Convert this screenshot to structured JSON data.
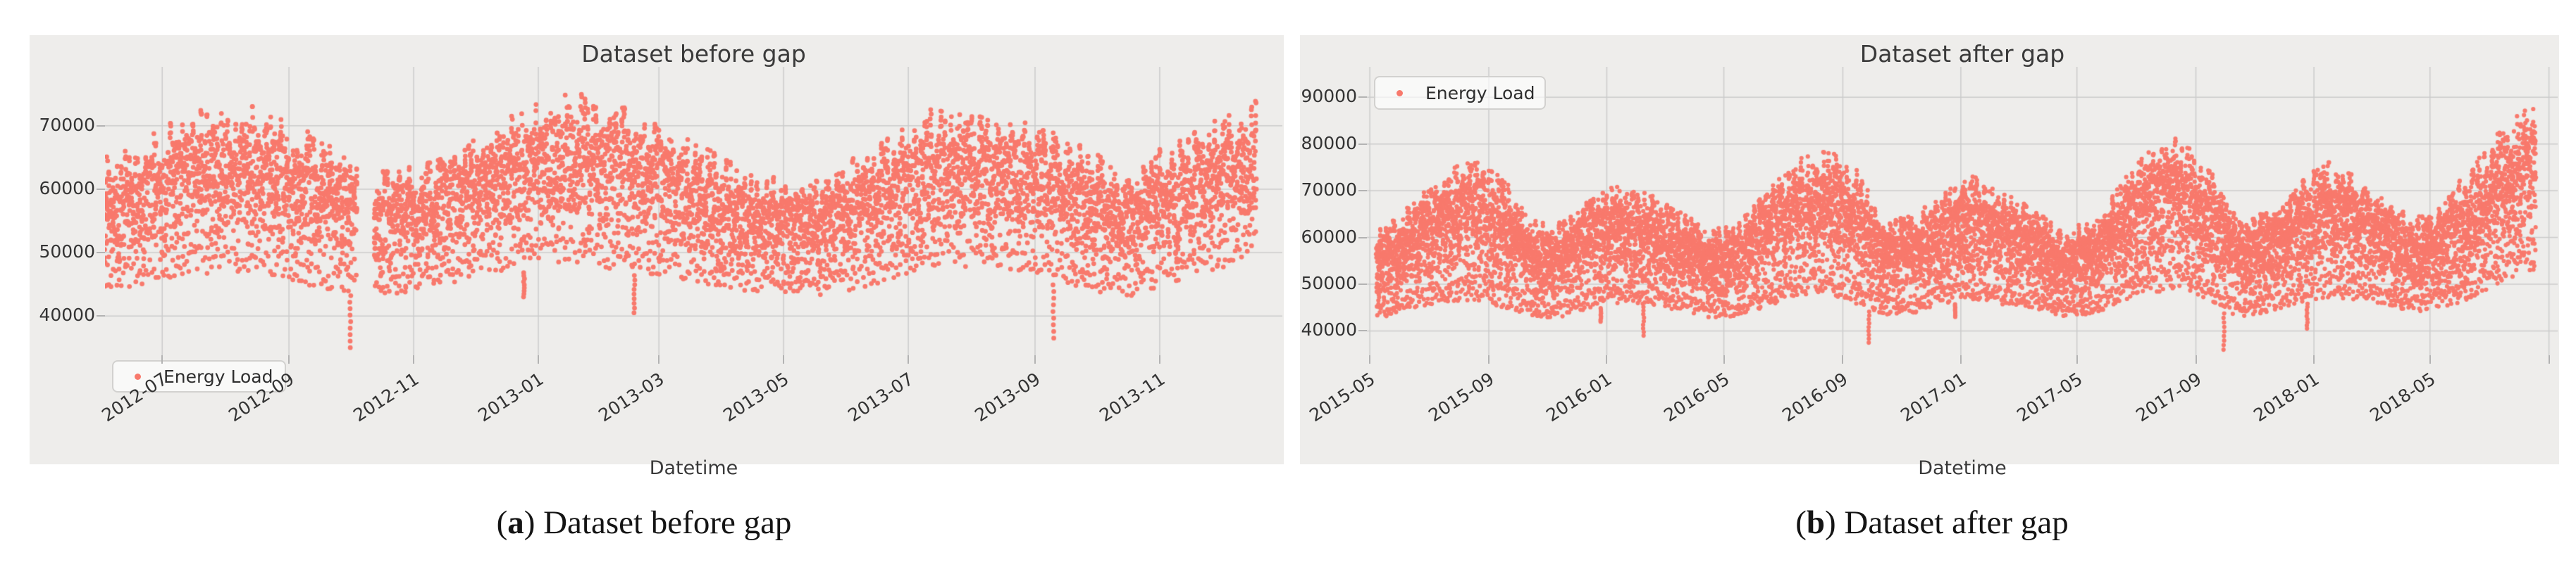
{
  "page": {
    "captions": [
      {
        "open": "(",
        "letter": "a",
        "rest": ") Dataset before gap"
      },
      {
        "open": "(",
        "letter": "b",
        "rest": ") Dataset after gap"
      }
    ]
  },
  "chart_data": [
    {
      "type": "scatter",
      "title": "Dataset before gap",
      "xlabel": "Datetime",
      "legend": {
        "label": "Energy Load",
        "position": "lower-left"
      },
      "series": [
        {
          "name": "Energy Load",
          "marker": "dot",
          "color": "#f8796c"
        }
      ],
      "x_ticks": [
        {
          "label": "2012-07",
          "date": "2012-07-01"
        },
        {
          "label": "2012-09",
          "date": "2012-09-01"
        },
        {
          "label": "2012-11",
          "date": "2012-11-01"
        },
        {
          "label": "2013-01",
          "date": "2013-01-01"
        },
        {
          "label": "2013-03",
          "date": "2013-03-01"
        },
        {
          "label": "2013-05",
          "date": "2013-05-01"
        },
        {
          "label": "2013-07",
          "date": "2013-07-01"
        },
        {
          "label": "2013-09",
          "date": "2013-09-01"
        },
        {
          "label": "2013-11",
          "date": "2013-11-01"
        }
      ],
      "y_ticks": [
        40000,
        50000,
        60000,
        70000
      ],
      "x_range": [
        "2012-06-03",
        "2013-12-31"
      ],
      "y_range": [
        33800,
        79300
      ],
      "data_start": "2012-06-03",
      "data_end": "2013-12-18",
      "monthly_envelope": {
        "2012-06": [
          44000,
          67000
        ],
        "2012-07": [
          46000,
          73500
        ],
        "2012-08": [
          46500,
          74500
        ],
        "2012-09": [
          44000,
          69000
        ],
        "2012-10": [
          42500,
          63500
        ],
        "2012-11": [
          44500,
          65500
        ],
        "2012-12": [
          46500,
          72000
        ],
        "2013-01": [
          47500,
          77000
        ],
        "2013-02": [
          46500,
          73500
        ],
        "2013-03": [
          45000,
          69000
        ],
        "2013-04": [
          43500,
          63000
        ],
        "2013-05": [
          42500,
          61500
        ],
        "2013-06": [
          44500,
          68000
        ],
        "2013-07": [
          47500,
          74000
        ],
        "2013-08": [
          47000,
          72500
        ],
        "2013-09": [
          44500,
          69500
        ],
        "2013-10": [
          42500,
          63500
        ],
        "2013-11": [
          45500,
          70000
        ],
        "2013-12": [
          48500,
          75500
        ]
      },
      "dip_events": [
        {
          "date": "2012-10-01",
          "low": 35000
        },
        {
          "date": "2012-12-25",
          "low": 43000
        },
        {
          "date": "2013-02-17",
          "low": 40500
        },
        {
          "date": "2013-09-10",
          "low": 36500
        }
      ],
      "gap_ranges": [
        [
          "2012-10-05",
          "2012-10-12"
        ]
      ],
      "style": {
        "background": "#eeedeb",
        "grid_color": "#cbcbcb",
        "marker_radius": 3.4,
        "points_per_day": 12
      },
      "seed": 20120603
    },
    {
      "type": "scatter",
      "title": "Dataset after gap",
      "xlabel": "Datetime",
      "legend": {
        "label": "Energy Load",
        "position": "upper-left"
      },
      "series": [
        {
          "name": "Energy Load",
          "marker": "dot",
          "color": "#f8796c"
        }
      ],
      "x_ticks": [
        {
          "label": "2015-05",
          "date": "2015-05-01"
        },
        {
          "label": "2015-09",
          "date": "2015-09-01"
        },
        {
          "label": "2016-01",
          "date": "2016-01-01"
        },
        {
          "label": "2016-05",
          "date": "2016-05-01"
        },
        {
          "label": "2016-09",
          "date": "2016-09-01"
        },
        {
          "label": "2017-01",
          "date": "2017-01-01"
        },
        {
          "label": "2017-05",
          "date": "2017-05-01"
        },
        {
          "label": "2017-09",
          "date": "2017-09-01"
        },
        {
          "label": "2018-01",
          "date": "2018-01-01"
        },
        {
          "label": "2018-05",
          "date": "2018-05-01"
        },
        {
          "label": "",
          "date": "2018-09-01"
        }
      ],
      "y_ticks": [
        40000,
        50000,
        60000,
        70000,
        80000,
        90000
      ],
      "x_range": [
        "2015-04-28",
        "2018-09-10"
      ],
      "y_range": [
        34800,
        96500
      ],
      "data_start": "2015-05-08",
      "data_end": "2018-08-18",
      "monthly_envelope": {
        "2015-05": [
          42500,
          63000
        ],
        "2015-06": [
          44000,
          68000
        ],
        "2015-07": [
          45500,
          75000
        ],
        "2015-08": [
          46000,
          78000
        ],
        "2015-09": [
          44500,
          74000
        ],
        "2015-10": [
          42500,
          64500
        ],
        "2015-11": [
          42500,
          64000
        ],
        "2015-12": [
          44500,
          69500
        ],
        "2016-01": [
          45500,
          72500
        ],
        "2016-02": [
          45000,
          70000
        ],
        "2016-03": [
          44000,
          66500
        ],
        "2016-04": [
          42500,
          62500
        ],
        "2016-05": [
          42500,
          64000
        ],
        "2016-06": [
          44500,
          71000
        ],
        "2016-07": [
          47000,
          77500
        ],
        "2016-08": [
          47500,
          80000
        ],
        "2016-09": [
          45000,
          76000
        ],
        "2016-10": [
          43000,
          64500
        ],
        "2016-11": [
          43500,
          65500
        ],
        "2016-12": [
          45500,
          71000
        ],
        "2017-01": [
          46000,
          74500
        ],
        "2017-02": [
          45000,
          70000
        ],
        "2017-03": [
          44500,
          67500
        ],
        "2017-04": [
          42500,
          62500
        ],
        "2017-05": [
          43000,
          64500
        ],
        "2017-06": [
          45500,
          72000
        ],
        "2017-07": [
          47500,
          81000
        ],
        "2017-08": [
          48000,
          83000
        ],
        "2017-09": [
          45000,
          75500
        ],
        "2017-10": [
          42500,
          64500
        ],
        "2017-11": [
          43500,
          66500
        ],
        "2017-12": [
          45500,
          72500
        ],
        "2018-01": [
          46500,
          77500
        ],
        "2018-02": [
          46000,
          74000
        ],
        "2018-03": [
          45000,
          70000
        ],
        "2018-04": [
          43500,
          64500
        ],
        "2018-05": [
          44500,
          68500
        ],
        "2018-06": [
          46500,
          77000
        ],
        "2018-07": [
          50000,
          85000
        ],
        "2018-08": [
          52000,
          90000
        ]
      },
      "dip_events": [
        {
          "date": "2015-12-26",
          "low": 42000
        },
        {
          "date": "2016-02-08",
          "low": 39000
        },
        {
          "date": "2016-09-28",
          "low": 37500
        },
        {
          "date": "2016-12-26",
          "low": 43000
        },
        {
          "date": "2017-09-30",
          "low": 36000
        },
        {
          "date": "2017-12-25",
          "low": 40500
        }
      ],
      "gap_ranges": [],
      "style": {
        "background": "#eeedeb",
        "grid_color": "#cbcbcb",
        "marker_radius": 3.1,
        "points_per_day": 9
      },
      "seed": 20150508
    }
  ]
}
